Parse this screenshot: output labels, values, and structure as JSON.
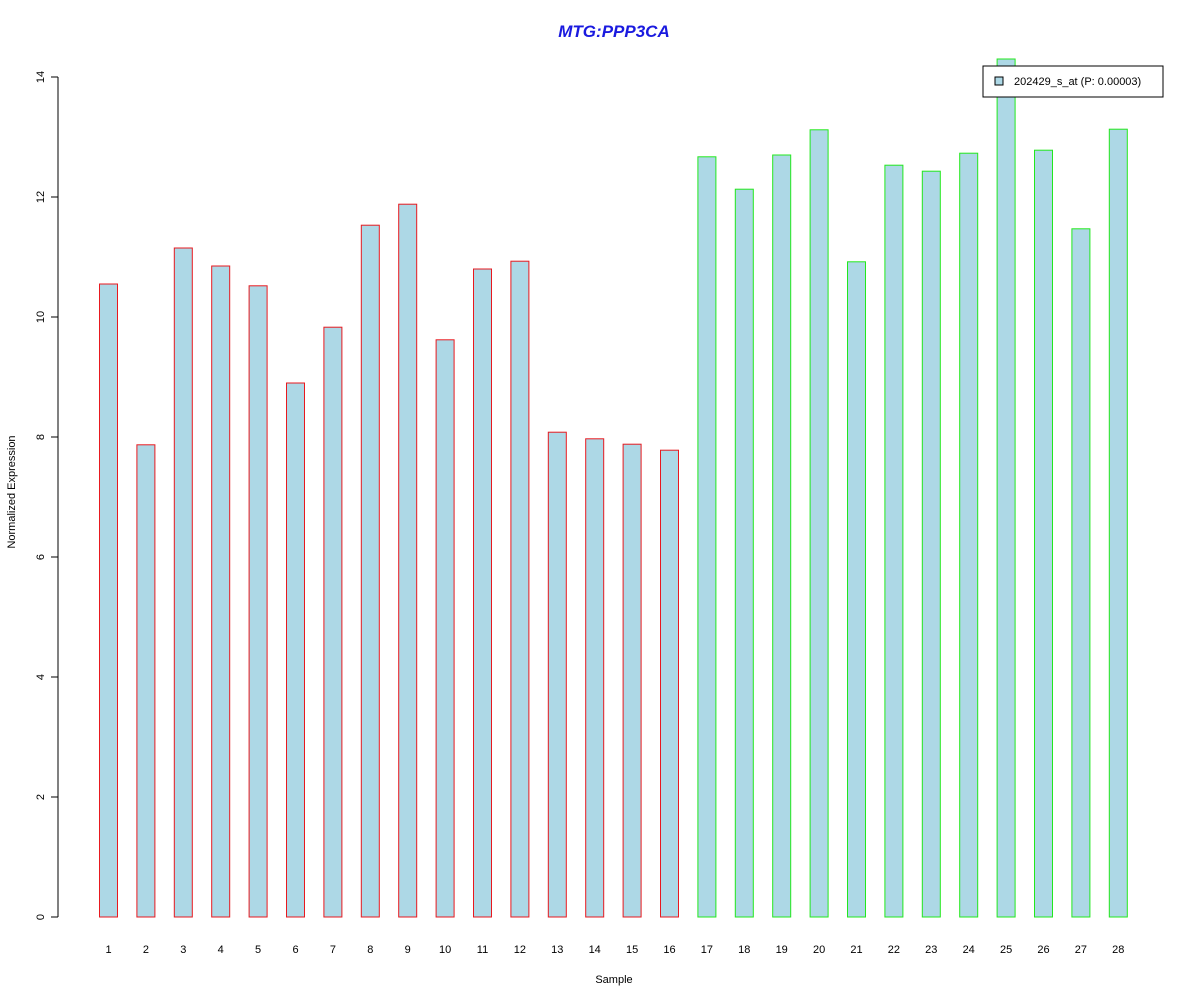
{
  "chart_data": {
    "type": "bar",
    "title": "MTG:PPP3CA",
    "xlabel": "Sample",
    "ylabel": "Normalized Expression",
    "categories": [
      "1",
      "2",
      "3",
      "4",
      "5",
      "6",
      "7",
      "8",
      "9",
      "10",
      "11",
      "12",
      "13",
      "14",
      "15",
      "16",
      "17",
      "18",
      "19",
      "20",
      "21",
      "22",
      "23",
      "24",
      "25",
      "26",
      "27",
      "28"
    ],
    "values": [
      10.55,
      7.87,
      11.15,
      10.85,
      10.52,
      8.9,
      9.83,
      11.53,
      11.88,
      9.62,
      10.8,
      10.93,
      8.08,
      7.97,
      7.88,
      7.78,
      12.67,
      12.13,
      12.7,
      13.12,
      10.92,
      12.53,
      12.43,
      12.73,
      14.3,
      12.78,
      11.47,
      13.13
    ],
    "group_border_colors": [
      "#e8191f",
      "#e8191f",
      "#e8191f",
      "#e8191f",
      "#e8191f",
      "#e8191f",
      "#e8191f",
      "#e8191f",
      "#e8191f",
      "#e8191f",
      "#e8191f",
      "#e8191f",
      "#e8191f",
      "#e8191f",
      "#e8191f",
      "#e8191f",
      "#22e81d",
      "#22e81d",
      "#22e81d",
      "#22e81d",
      "#22e81d",
      "#22e81d",
      "#22e81d",
      "#22e81d",
      "#22e81d",
      "#22e81d",
      "#22e81d",
      "#22e81d"
    ],
    "bar_fill": "#add8e6",
    "title_color": "#1a1adf",
    "ylim": [
      0,
      14
    ],
    "yticks": [
      "0",
      "2",
      "4",
      "6",
      "8",
      "10",
      "12",
      "14"
    ],
    "legend": {
      "label": "202429_s_at (P: 0.00003)",
      "placement": "top-right",
      "swatch_color": "#add8e6"
    },
    "grid": false
  }
}
